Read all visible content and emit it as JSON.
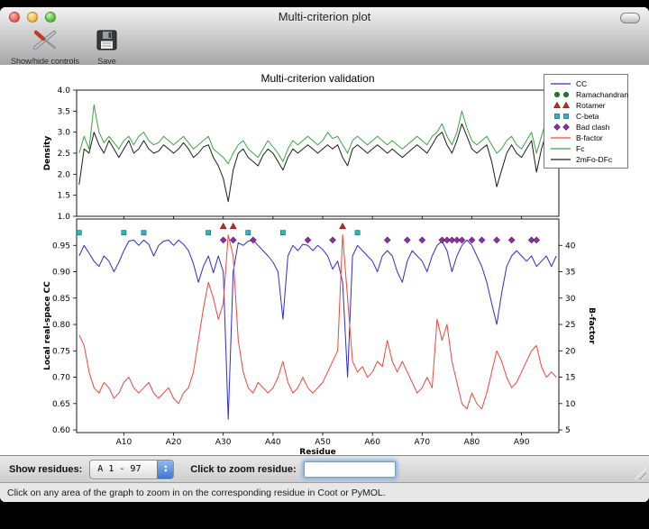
{
  "window": {
    "title": "Multi-criterion plot",
    "toolbar": {
      "show_hide_controls_label": "Show/hide controls",
      "save_label": "Save"
    }
  },
  "figure": {
    "title": "Multi-criterion validation",
    "legend": {
      "position": "top-right",
      "entries": [
        {
          "label": "CC",
          "type": "line",
          "color": "#2c2cd8"
        },
        {
          "label": "Ramachandran",
          "type": "circle",
          "color": "#1e7d1e"
        },
        {
          "label": "Rotamer",
          "type": "triangle",
          "color": "#c9281c"
        },
        {
          "label": "C-beta",
          "type": "square",
          "color": "#2fb5b5"
        },
        {
          "label": "Bad clash",
          "type": "diamond",
          "color": "#8f2fa8"
        },
        {
          "label": "B-factor",
          "type": "line",
          "color": "#f2453b"
        },
        {
          "label": "Fc",
          "type": "line",
          "color": "#39a53f"
        },
        {
          "label": "2mFo-DFc",
          "type": "line",
          "color": "#1c1c1c"
        }
      ]
    }
  },
  "controls": {
    "show_residues_label": "Show residues:",
    "residue_range_value": "A  1 - 97",
    "zoom_label": "Click to zoom residue:",
    "zoom_input_value": ""
  },
  "status_bar": {
    "text": "Click on any area of the graph to zoom in on the corresponding residue in Coot or PyMOL."
  },
  "chart_data": [
    {
      "type": "line",
      "ylabel": "Density",
      "xlabel": "",
      "xlim": [
        0.5,
        97.5
      ],
      "ylim": [
        1.0,
        4.0
      ],
      "yticks": [
        1.0,
        1.5,
        2.0,
        2.5,
        3.0,
        3.5,
        4.0
      ],
      "yticklabels": [
        "1.0",
        "1.5",
        "2.0",
        "2.5",
        "3.0",
        "3.5",
        "4.0"
      ],
      "xticks": [
        10,
        20,
        30,
        40,
        50,
        60,
        70,
        80,
        90
      ],
      "xticklabels": [],
      "series": [
        {
          "name": "Fc",
          "color": "#39a53f",
          "axis": "left",
          "values": [
            2.5,
            2.9,
            2.6,
            3.65,
            3.0,
            2.75,
            2.9,
            2.75,
            2.6,
            2.8,
            2.9,
            2.7,
            2.9,
            3.0,
            2.8,
            2.7,
            2.75,
            2.9,
            2.8,
            2.7,
            2.8,
            2.9,
            2.75,
            2.6,
            2.7,
            2.8,
            2.9,
            2.6,
            2.5,
            2.4,
            2.25,
            2.5,
            2.7,
            2.8,
            2.6,
            2.5,
            2.4,
            2.6,
            2.8,
            2.65,
            2.5,
            2.3,
            2.6,
            2.8,
            2.7,
            2.8,
            2.9,
            2.8,
            2.7,
            2.8,
            3.0,
            2.85,
            2.9,
            2.7,
            2.5,
            2.8,
            2.9,
            2.8,
            2.7,
            2.8,
            2.9,
            2.8,
            2.7,
            2.8,
            2.7,
            2.6,
            2.7,
            2.8,
            2.9,
            2.8,
            2.7,
            2.9,
            3.0,
            3.2,
            2.9,
            2.7,
            3.0,
            3.5,
            3.1,
            2.8,
            2.7,
            2.8,
            2.9,
            2.7,
            2.5,
            2.6,
            2.8,
            2.9,
            2.7,
            2.6,
            2.8,
            3.0,
            2.5,
            2.9,
            3.3,
            3.1,
            3.3
          ]
        },
        {
          "name": "2mFo-DFc",
          "color": "#1c1c1c",
          "axis": "left",
          "values": [
            1.75,
            2.6,
            2.5,
            3.0,
            2.7,
            2.5,
            2.8,
            2.6,
            2.4,
            2.6,
            2.8,
            2.5,
            2.6,
            2.8,
            2.6,
            2.5,
            2.55,
            2.7,
            2.6,
            2.5,
            2.6,
            2.75,
            2.6,
            2.4,
            2.5,
            2.65,
            2.7,
            2.4,
            2.2,
            1.9,
            1.35,
            2.1,
            2.5,
            2.6,
            2.4,
            2.3,
            2.2,
            2.45,
            2.6,
            2.5,
            2.3,
            2.1,
            2.4,
            2.6,
            2.5,
            2.6,
            2.7,
            2.6,
            2.5,
            2.6,
            2.7,
            2.6,
            2.7,
            2.4,
            2.2,
            2.6,
            2.7,
            2.6,
            2.5,
            2.6,
            2.7,
            2.6,
            2.5,
            2.6,
            2.5,
            2.4,
            2.5,
            2.6,
            2.7,
            2.6,
            2.5,
            2.7,
            2.9,
            3.0,
            2.7,
            2.5,
            2.8,
            3.2,
            2.9,
            2.6,
            2.5,
            2.6,
            2.7,
            2.3,
            1.7,
            2.1,
            2.5,
            2.7,
            2.5,
            2.4,
            2.6,
            2.8,
            2.05,
            2.6,
            3.0,
            2.8,
            2.6
          ]
        }
      ]
    },
    {
      "type": "line",
      "ylabel": "Local real-space CC",
      "xlabel": "Residue",
      "right_ylabel": "B-factor",
      "xlim": [
        0.5,
        97.5
      ],
      "ylim": [
        0.595,
        1.0
      ],
      "right_ylim": [
        4.5,
        45
      ],
      "yticks": [
        0.6,
        0.65,
        0.7,
        0.75,
        0.8,
        0.85,
        0.9,
        0.95
      ],
      "yticklabels": [
        "0.60",
        "0.65",
        "0.70",
        "0.75",
        "0.80",
        "0.85",
        "0.90",
        "0.95"
      ],
      "right_yticks": [
        5,
        10,
        15,
        20,
        25,
        30,
        35,
        40
      ],
      "right_yticklabels": [
        "5",
        "10",
        "15",
        "20",
        "25",
        "30",
        "35",
        "40"
      ],
      "xticks": [
        10,
        20,
        30,
        40,
        50,
        60,
        70,
        80,
        90
      ],
      "xticklabels": [
        "A10",
        "A20",
        "A30",
        "A40",
        "A50",
        "A60",
        "A70",
        "A80",
        "A90"
      ],
      "series": [
        {
          "name": "CC",
          "color": "#2c2cd8",
          "axis": "left",
          "values": [
            0.93,
            0.95,
            0.935,
            0.92,
            0.91,
            0.93,
            0.92,
            0.9,
            0.918,
            0.94,
            0.958,
            0.96,
            0.95,
            0.96,
            0.952,
            0.93,
            0.95,
            0.958,
            0.96,
            0.95,
            0.96,
            0.952,
            0.94,
            0.915,
            0.88,
            0.91,
            0.93,
            0.898,
            0.93,
            0.9,
            0.62,
            0.9,
            0.955,
            0.95,
            0.958,
            0.96,
            0.95,
            0.94,
            0.93,
            0.918,
            0.9,
            0.81,
            0.93,
            0.95,
            0.94,
            0.952,
            0.95,
            0.94,
            0.95,
            0.942,
            0.93,
            0.905,
            0.92,
            0.88,
            0.7,
            0.93,
            0.95,
            0.94,
            0.93,
            0.92,
            0.9,
            0.93,
            0.94,
            0.93,
            0.9,
            0.88,
            0.92,
            0.94,
            0.93,
            0.92,
            0.9,
            0.93,
            0.95,
            0.958,
            0.94,
            0.9,
            0.93,
            0.95,
            0.96,
            0.95,
            0.93,
            0.91,
            0.88,
            0.84,
            0.8,
            0.86,
            0.91,
            0.93,
            0.94,
            0.93,
            0.92,
            0.93,
            0.91,
            0.92,
            0.93,
            0.91,
            0.93
          ]
        },
        {
          "name": "B-factor",
          "color": "#f2453b",
          "axis": "right",
          "values": [
            23,
            21,
            16,
            13,
            12,
            14,
            13,
            11,
            12,
            14,
            15,
            13,
            12,
            13,
            14,
            12,
            11,
            12,
            13,
            11,
            10,
            12,
            13,
            16,
            22,
            28,
            33,
            30,
            26,
            29,
            42,
            38,
            22,
            16,
            13,
            12,
            14,
            13,
            12,
            13,
            15,
            18,
            14,
            12,
            13,
            15,
            13,
            12,
            13,
            14,
            16,
            18,
            20,
            42,
            30,
            18,
            16,
            17,
            15,
            16,
            18,
            17,
            22,
            18,
            16,
            18,
            16,
            14,
            12,
            13,
            15,
            13,
            26,
            22,
            25,
            18,
            14,
            10,
            9,
            12,
            10,
            9,
            12,
            16,
            20,
            18,
            15,
            13,
            14,
            16,
            18,
            20,
            21,
            17,
            15,
            16,
            15
          ]
        }
      ],
      "markers": [
        {
          "name": "Rotamer outliers",
          "shape": "triangle",
          "color": "#c9281c",
          "y": 0.986,
          "residues": [
            30,
            32,
            54
          ]
        },
        {
          "name": "C-beta deviations",
          "shape": "square",
          "color": "#2fb5b5",
          "y": 0.974,
          "residues": [
            1,
            10,
            14,
            27,
            35,
            42,
            57
          ]
        },
        {
          "name": "Bad clashes",
          "shape": "diamond",
          "color": "#8f2fa8",
          "y": 0.96,
          "residues": [
            30,
            32,
            36,
            47,
            52,
            63,
            67,
            70,
            74,
            75,
            76,
            77,
            78,
            80,
            82,
            85,
            88,
            92,
            93
          ]
        }
      ]
    }
  ]
}
